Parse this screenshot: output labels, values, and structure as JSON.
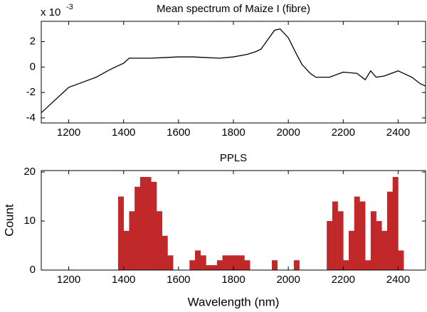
{
  "chart_data": [
    {
      "type": "line",
      "title": "Mean spectrum of Maize I (fibre)",
      "y_scale_label": {
        "base": "x 10",
        "exponent": "-3"
      },
      "x": [
        1100,
        1150,
        1200,
        1250,
        1300,
        1350,
        1400,
        1420,
        1450,
        1500,
        1550,
        1600,
        1650,
        1700,
        1750,
        1800,
        1850,
        1880,
        1900,
        1920,
        1950,
        1970,
        2000,
        2030,
        2050,
        2080,
        2100,
        2150,
        2200,
        2250,
        2280,
        2300,
        2320,
        2350,
        2400,
        2450,
        2480,
        2500
      ],
      "values": [
        -3.6,
        -2.6,
        -1.6,
        -1.2,
        -0.8,
        -0.2,
        0.3,
        0.7,
        0.7,
        0.7,
        0.75,
        0.8,
        0.8,
        0.75,
        0.7,
        0.8,
        1.0,
        1.2,
        1.4,
        2.0,
        2.9,
        3.0,
        2.3,
        1.0,
        0.2,
        -0.5,
        -0.8,
        -0.8,
        -0.4,
        -0.5,
        -1.0,
        -0.3,
        -0.8,
        -0.7,
        -0.3,
        -0.8,
        -1.3,
        -1.5
      ],
      "color": "#000000",
      "xlim": [
        1100,
        2500
      ],
      "xticks": [
        1200,
        1400,
        1600,
        1800,
        2000,
        2200,
        2400
      ],
      "ylim": [
        -4.4,
        3.6
      ],
      "yticks": [
        -4,
        -2,
        0,
        2
      ]
    },
    {
      "type": "histogram",
      "title": "PPLS",
      "xlabel": "Wavelength (nm)",
      "ylabel": "Count",
      "bins": [
        1100,
        1120,
        1140,
        1160,
        1180,
        1200,
        1220,
        1240,
        1260,
        1280,
        1300,
        1320,
        1340,
        1360,
        1380,
        1400,
        1420,
        1440,
        1460,
        1480,
        1500,
        1520,
        1540,
        1560,
        1580,
        1600,
        1620,
        1640,
        1660,
        1680,
        1700,
        1720,
        1740,
        1760,
        1780,
        1800,
        1820,
        1840,
        1860,
        1880,
        1900,
        1920,
        1940,
        1960,
        1980,
        2000,
        2020,
        2040,
        2060,
        2080,
        2100,
        2120,
        2140,
        2160,
        2180,
        2200,
        2220,
        2240,
        2260,
        2280,
        2300,
        2320,
        2340,
        2360,
        2380,
        2400,
        2420,
        2440,
        2460,
        2480,
        2500
      ],
      "counts": [
        0,
        0,
        0,
        0,
        0,
        0,
        0,
        0,
        0,
        0,
        0,
        0,
        0,
        0,
        15,
        8,
        12,
        17,
        19,
        19,
        18,
        12,
        7,
        3,
        0,
        0,
        0,
        2,
        4,
        3,
        1,
        1,
        2,
        3,
        3,
        3,
        3,
        2,
        0,
        0,
        0,
        0,
        2,
        0,
        0,
        0,
        2,
        0,
        0,
        0,
        0,
        0,
        10,
        14,
        12,
        2,
        8,
        15,
        14,
        2,
        12,
        10,
        8,
        16,
        19,
        4,
        0,
        0,
        0,
        0
      ],
      "color": "#c0282a",
      "xlim": [
        1100,
        2500
      ],
      "xticks": [
        1200,
        1400,
        1600,
        1800,
        2000,
        2200,
        2400
      ],
      "ylim": [
        0,
        20.3
      ],
      "yticks": [
        0,
        10,
        20
      ]
    }
  ]
}
